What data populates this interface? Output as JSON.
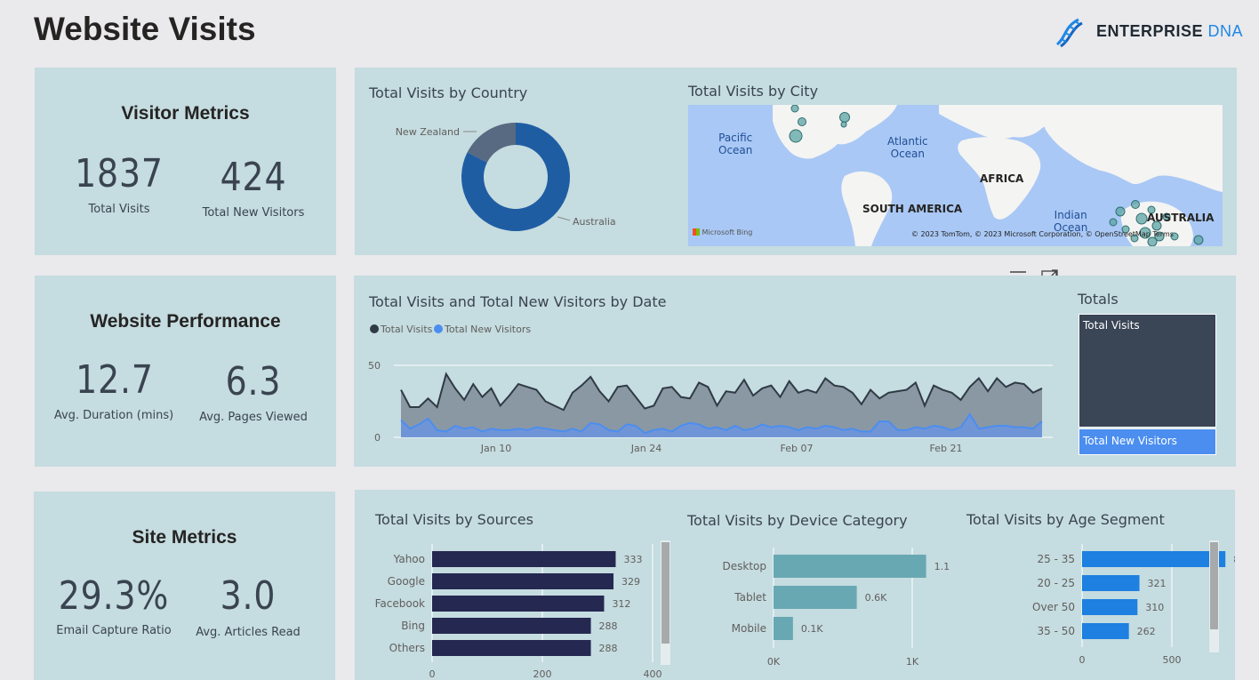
{
  "page": {
    "title": "Website Visits"
  },
  "logo": {
    "word1": "ENTERPRISE",
    "word2": "DNA"
  },
  "visitor_metrics": {
    "heading": "Visitor Metrics",
    "kpis": [
      {
        "value": "1837",
        "label": "Total Visits"
      },
      {
        "value": "424",
        "label": "Total New Visitors"
      }
    ]
  },
  "website_performance": {
    "heading": "Website Performance",
    "kpis": [
      {
        "value": "12.7",
        "label": "Avg. Duration (mins)"
      },
      {
        "value": "6.3",
        "label": "Avg. Pages Viewed"
      }
    ]
  },
  "site_metrics": {
    "heading": "Site Metrics",
    "kpis": [
      {
        "value": "29.3%",
        "label": "Email Capture Ratio"
      },
      {
        "value": "3.0",
        "label": "Avg. Articles Read"
      }
    ]
  },
  "map": {
    "title": "Total Visits by City",
    "labels": {
      "pacific": "Pacific\nOcean",
      "atlantic": "Atlantic\nOcean",
      "indian": "Indian\nOcean",
      "africa": "AFRICA",
      "south_america": "SOUTH AMERICA",
      "australia": "AUSTRALIA"
    },
    "provider": "Microsoft Bing",
    "attribution": "© 2023 TomTom, © 2023 Microsoft Corporation, © OpenStreetMap  Terms",
    "colors": {
      "water": "#a9c8f5",
      "land": "#f4f4f2",
      "bubble": "#5ea4a6"
    }
  },
  "toolbar": {
    "icons": [
      "filter-icon",
      "focus-mode-icon"
    ]
  },
  "totals": {
    "title": "Totals",
    "blocks": [
      {
        "label": "Total Visits",
        "value": 1837,
        "color": "#3a4556"
      },
      {
        "label": "Total New Visitors",
        "value": 424,
        "color": "#4b8ef0"
      }
    ]
  },
  "chart_data": [
    {
      "id": "country",
      "type": "pie",
      "title": "Total Visits by Country",
      "labels": [
        "Australia",
        "New Zealand"
      ],
      "values": [
        1515,
        322
      ],
      "colors": [
        "#1f5da3",
        "#586a82"
      ]
    },
    {
      "id": "by_date",
      "type": "area",
      "title": "Total Visits and Total New Visitors by Date",
      "legend_position": "top-left",
      "x_ticks": [
        "Jan 10",
        "Jan 24",
        "Feb 07",
        "Feb 21"
      ],
      "ylim": [
        0,
        50
      ],
      "y_ticks": [
        "0",
        "50"
      ],
      "grid": true,
      "series": [
        {
          "name": "Total Visits",
          "color": "#2f3a45",
          "values": [
            33,
            21,
            21,
            27,
            21,
            44,
            34,
            26,
            37,
            28,
            34,
            22,
            29,
            37,
            35,
            33,
            25,
            22,
            19,
            31,
            36,
            42,
            32,
            25,
            35,
            36,
            28,
            20,
            22,
            34,
            35,
            28,
            27,
            38,
            35,
            22,
            32,
            31,
            40,
            29,
            34,
            36,
            28,
            39,
            31,
            33,
            31,
            41,
            36,
            35,
            31,
            23,
            33,
            27,
            31,
            32,
            33,
            38,
            22,
            36,
            33,
            31,
            26,
            35,
            41,
            32,
            41,
            35,
            38,
            37,
            31,
            34
          ]
        },
        {
          "name": "Total New Visitors",
          "color": "#4b8ef0",
          "values": [
            12,
            6,
            9,
            13,
            5,
            4,
            8,
            6,
            7,
            4,
            6,
            5,
            5,
            6,
            5,
            7,
            6,
            5,
            4,
            6,
            4,
            10,
            9,
            5,
            4,
            9,
            8,
            3,
            5,
            6,
            4,
            8,
            10,
            9,
            6,
            7,
            5,
            8,
            5,
            6,
            9,
            7,
            8,
            7,
            5,
            7,
            6,
            8,
            7,
            5,
            6,
            4,
            4,
            11,
            11,
            5,
            5,
            7,
            6,
            8,
            7,
            5,
            7,
            16,
            6,
            7,
            8,
            8,
            7,
            7,
            6,
            11
          ]
        }
      ]
    },
    {
      "id": "sources",
      "type": "bar",
      "orientation": "horizontal",
      "title": "Total Visits by Sources",
      "categories": [
        "Yahoo",
        "Google",
        "Facebook",
        "Bing",
        "Others"
      ],
      "values": [
        333,
        329,
        312,
        288,
        288
      ],
      "xlim": [
        0,
        400
      ],
      "x_ticks": [
        "0",
        "200",
        "400"
      ],
      "color": "#252850"
    },
    {
      "id": "device",
      "type": "bar",
      "orientation": "horizontal",
      "title": "Total Visits by Device Category",
      "categories": [
        "Desktop",
        "Tablet",
        "Mobile"
      ],
      "values": [
        1100,
        600,
        140
      ],
      "value_labels": [
        "1.1K",
        "0.6K",
        "0.1K"
      ],
      "xlim": [
        0,
        1250
      ],
      "x_ticks": [
        "0K",
        "1K"
      ],
      "color": "#68a8b3"
    },
    {
      "id": "age",
      "type": "bar",
      "orientation": "horizontal",
      "title": "Total Visits by Age Segment",
      "categories": [
        "25 - 35",
        "20 - 25",
        "Over 50",
        "35 - 50"
      ],
      "values": [
        802,
        321,
        310,
        262
      ],
      "xlim": [
        0,
        1000
      ],
      "x_ticks": [
        "0",
        "500",
        "1000"
      ],
      "color": "#1e80e0"
    }
  ]
}
